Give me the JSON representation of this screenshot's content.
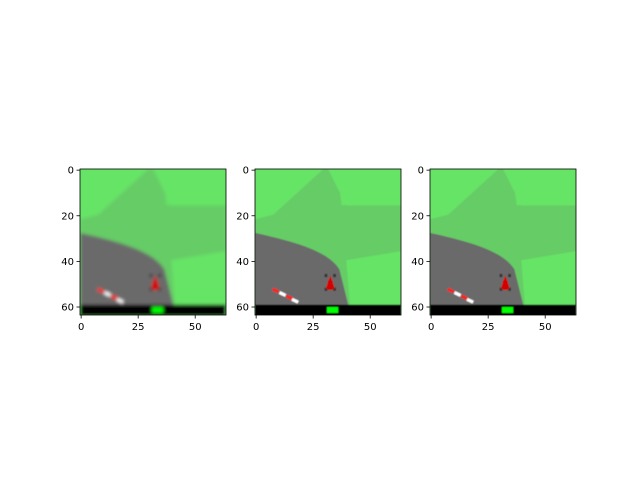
{
  "figure": {
    "panels": [
      {
        "name": "panel-1",
        "style": "blurred",
        "x_ticks": [
          "0",
          "25",
          "50"
        ],
        "y_ticks": [
          "0",
          "20",
          "40",
          "60"
        ]
      },
      {
        "name": "panel-2",
        "style": "sharp",
        "x_ticks": [
          "0",
          "25",
          "50"
        ],
        "y_ticks": [
          "0",
          "20",
          "40",
          "60"
        ]
      },
      {
        "name": "panel-3",
        "style": "sharp",
        "x_ticks": [
          "0",
          "25",
          "50"
        ],
        "y_ticks": [
          "0",
          "20",
          "40",
          "60"
        ]
      }
    ],
    "image_extent": {
      "x": [
        0,
        64
      ],
      "y": [
        0,
        64
      ]
    },
    "colors": {
      "grass_light": "#66e466",
      "grass_dark": "#66cc66",
      "road": "#6b6b6b",
      "car": "#d40000",
      "hud": "#000000",
      "hud_indicator": "#00ff00",
      "curb_red": "#ff2020",
      "curb_white": "#ffffff"
    }
  }
}
